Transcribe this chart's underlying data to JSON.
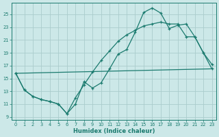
{
  "xlabel": "Humidex (Indice chaleur)",
  "bg_color": "#cce8e8",
  "line_color": "#1a7a6e",
  "grid_color": "#aacccc",
  "xlim": [
    -0.5,
    23.5
  ],
  "ylim": [
    8.5,
    26.8
  ],
  "xticks": [
    0,
    1,
    2,
    3,
    4,
    5,
    6,
    7,
    8,
    9,
    10,
    11,
    12,
    13,
    14,
    15,
    16,
    17,
    18,
    19,
    20,
    21,
    22,
    23
  ],
  "yticks": [
    9,
    11,
    13,
    15,
    17,
    19,
    21,
    23,
    25
  ],
  "line1_x": [
    0,
    1,
    2,
    3,
    4,
    5,
    6,
    7,
    8,
    9,
    10,
    11,
    12,
    13,
    14,
    15,
    16,
    17,
    18,
    19,
    20,
    21,
    22,
    23
  ],
  "line1_y": [
    15.8,
    13.2,
    12.2,
    11.7,
    11.4,
    11.0,
    9.5,
    11.0,
    14.5,
    13.5,
    14.3,
    16.5,
    18.8,
    19.5,
    22.2,
    25.3,
    26.0,
    25.2,
    22.8,
    23.3,
    23.5,
    21.5,
    19.0,
    17.2
  ],
  "line2_x": [
    0,
    1,
    2,
    3,
    4,
    5,
    6,
    7,
    8,
    9,
    10,
    11,
    12,
    13,
    14,
    15,
    16,
    17,
    18,
    19,
    20,
    21,
    22,
    23
  ],
  "line2_y": [
    15.8,
    13.2,
    12.2,
    11.7,
    11.4,
    11.0,
    9.5,
    12.0,
    14.0,
    16.0,
    17.8,
    19.3,
    20.8,
    21.8,
    22.5,
    23.2,
    23.5,
    23.8,
    23.5,
    23.5,
    21.5,
    21.5,
    19.0,
    16.5
  ],
  "line3_x": [
    0,
    23
  ],
  "line3_y": [
    15.8,
    16.5
  ]
}
